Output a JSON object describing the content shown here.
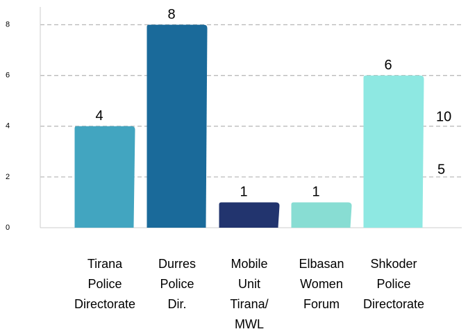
{
  "chart_data": {
    "type": "bar",
    "categories": [
      "Tirana\nPolice\nDirectorate",
      "Durres\nPolice\nDir.",
      "Mobile\nUnit\nTirana/\nMWL",
      "Elbasan\nWomen\nForum",
      "Shkoder\nPolice\nDirectorate"
    ],
    "values": [
      4,
      8,
      1,
      1,
      6
    ],
    "colors": [
      "#42a5c0",
      "#1a6a9a",
      "#22346e",
      "#88ddd3",
      "#8ee8e2"
    ],
    "ylim": [
      0,
      8.7
    ],
    "yticks": [
      0,
      2,
      4,
      6,
      8
    ],
    "grid": true,
    "annotations": [
      "10",
      "5"
    ]
  }
}
